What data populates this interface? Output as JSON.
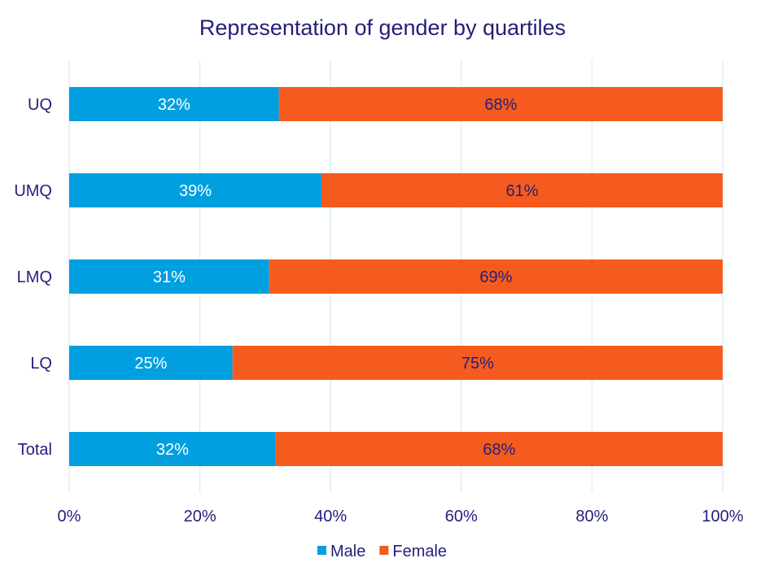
{
  "chart_data": {
    "type": "bar",
    "orientation": "horizontal",
    "stacked": "percent",
    "title": "Representation of gender by quartiles",
    "categories": [
      "UQ",
      "UMQ",
      "LMQ",
      "LQ",
      "Total"
    ],
    "series": [
      {
        "name": "Male",
        "color": "#009FE0",
        "values": [
          32.1,
          38.6,
          30.6,
          25.0,
          31.6
        ],
        "labels": [
          "32%",
          "39%",
          "31%",
          "25%",
          "32%"
        ],
        "label_color": "#FFFFFF"
      },
      {
        "name": "Female",
        "color": "#F55B1E",
        "values": [
          67.9,
          61.4,
          69.4,
          75.0,
          68.4
        ],
        "labels": [
          "68%",
          "61%",
          "69%",
          "75%",
          "68%"
        ],
        "label_color": "#231F7A"
      }
    ],
    "xlim": [
      0,
      100
    ],
    "x_ticks": [
      "0%",
      "20%",
      "40%",
      "60%",
      "80%",
      "100%"
    ],
    "grid": true,
    "legend_placement": "bottom",
    "text_color": "#231F7A",
    "grid_color": "#DDEFFA"
  }
}
